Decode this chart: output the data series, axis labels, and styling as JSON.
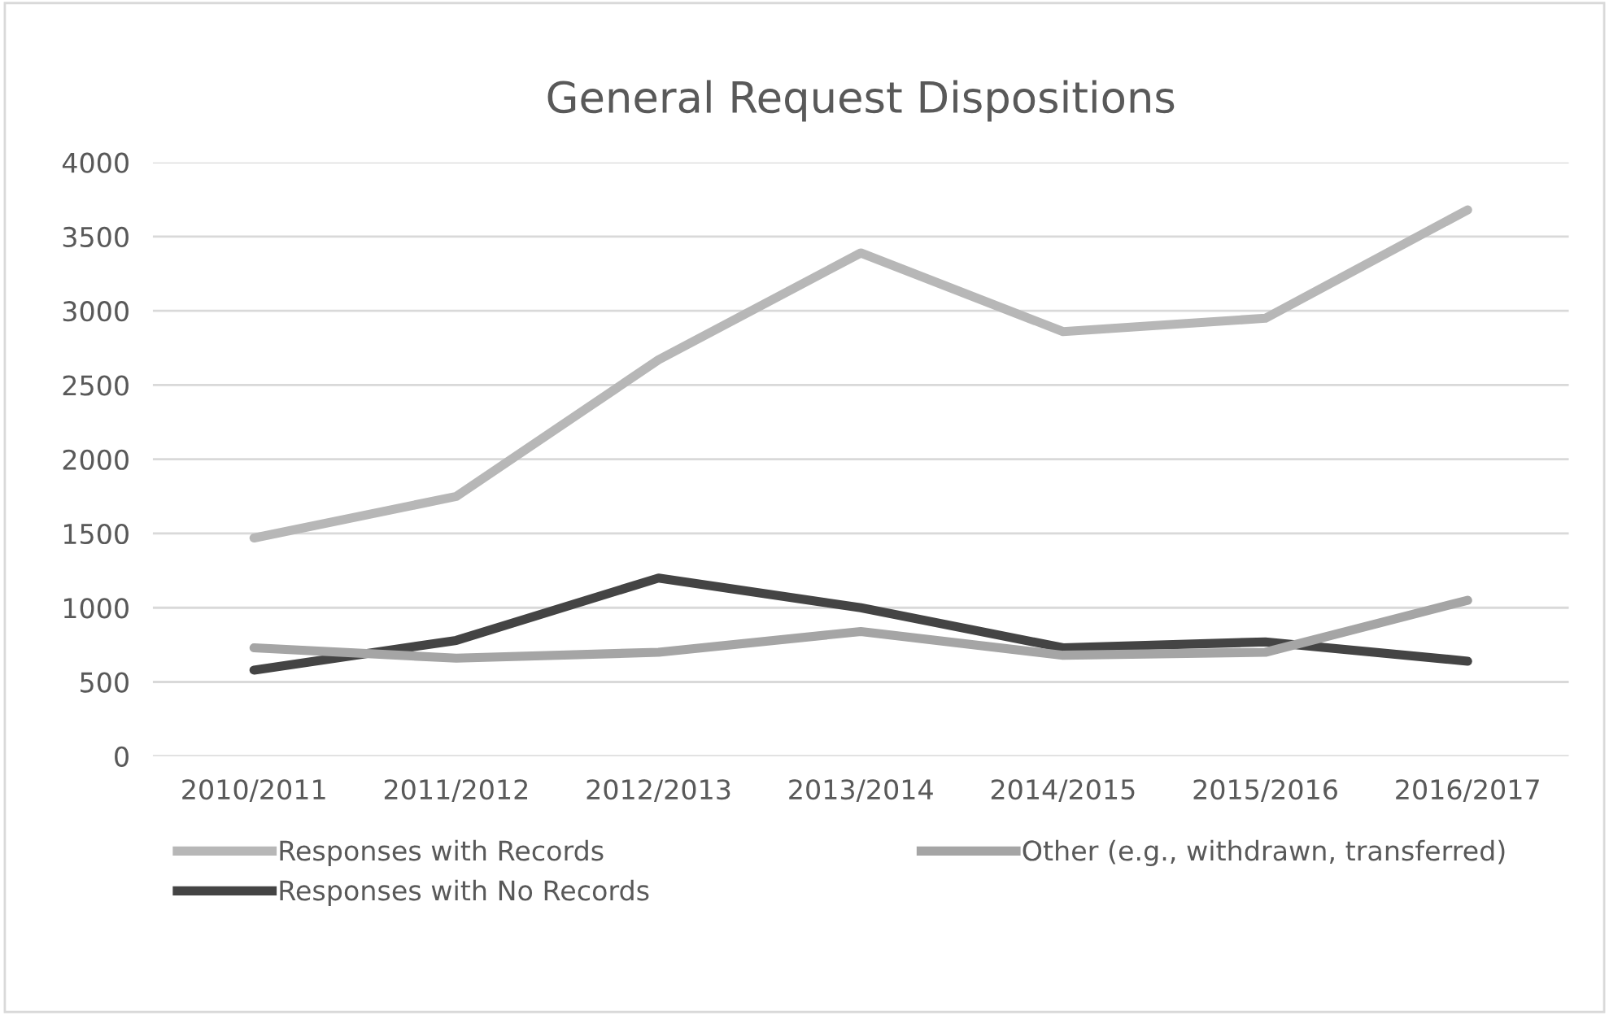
{
  "chart_data": {
    "type": "line",
    "title": "General Request Dispositions",
    "categories": [
      "2010/2011",
      "2011/2012",
      "2012/2013",
      "2013/2014",
      "2014/2015",
      "2015/2016",
      "2016/2017"
    ],
    "series": [
      {
        "name": "Responses with Records",
        "color": "#b7b7b7",
        "values": [
          1470,
          1750,
          2670,
          3390,
          2860,
          2950,
          3680
        ]
      },
      {
        "name": "Responses with No Records",
        "color": "#444444",
        "values": [
          580,
          780,
          1200,
          1000,
          730,
          770,
          640
        ]
      },
      {
        "name": "Other (e.g., withdrawn, transferred)",
        "color": "#a5a5a5",
        "values": [
          730,
          660,
          700,
          840,
          680,
          700,
          1050
        ]
      }
    ],
    "ylim": [
      0,
      4000
    ],
    "yticks": [
      0,
      500,
      1000,
      1500,
      2000,
      2500,
      3000,
      3500,
      4000
    ],
    "grid": "y",
    "legend": "bottom",
    "marker": "none",
    "line_style": "solid"
  }
}
